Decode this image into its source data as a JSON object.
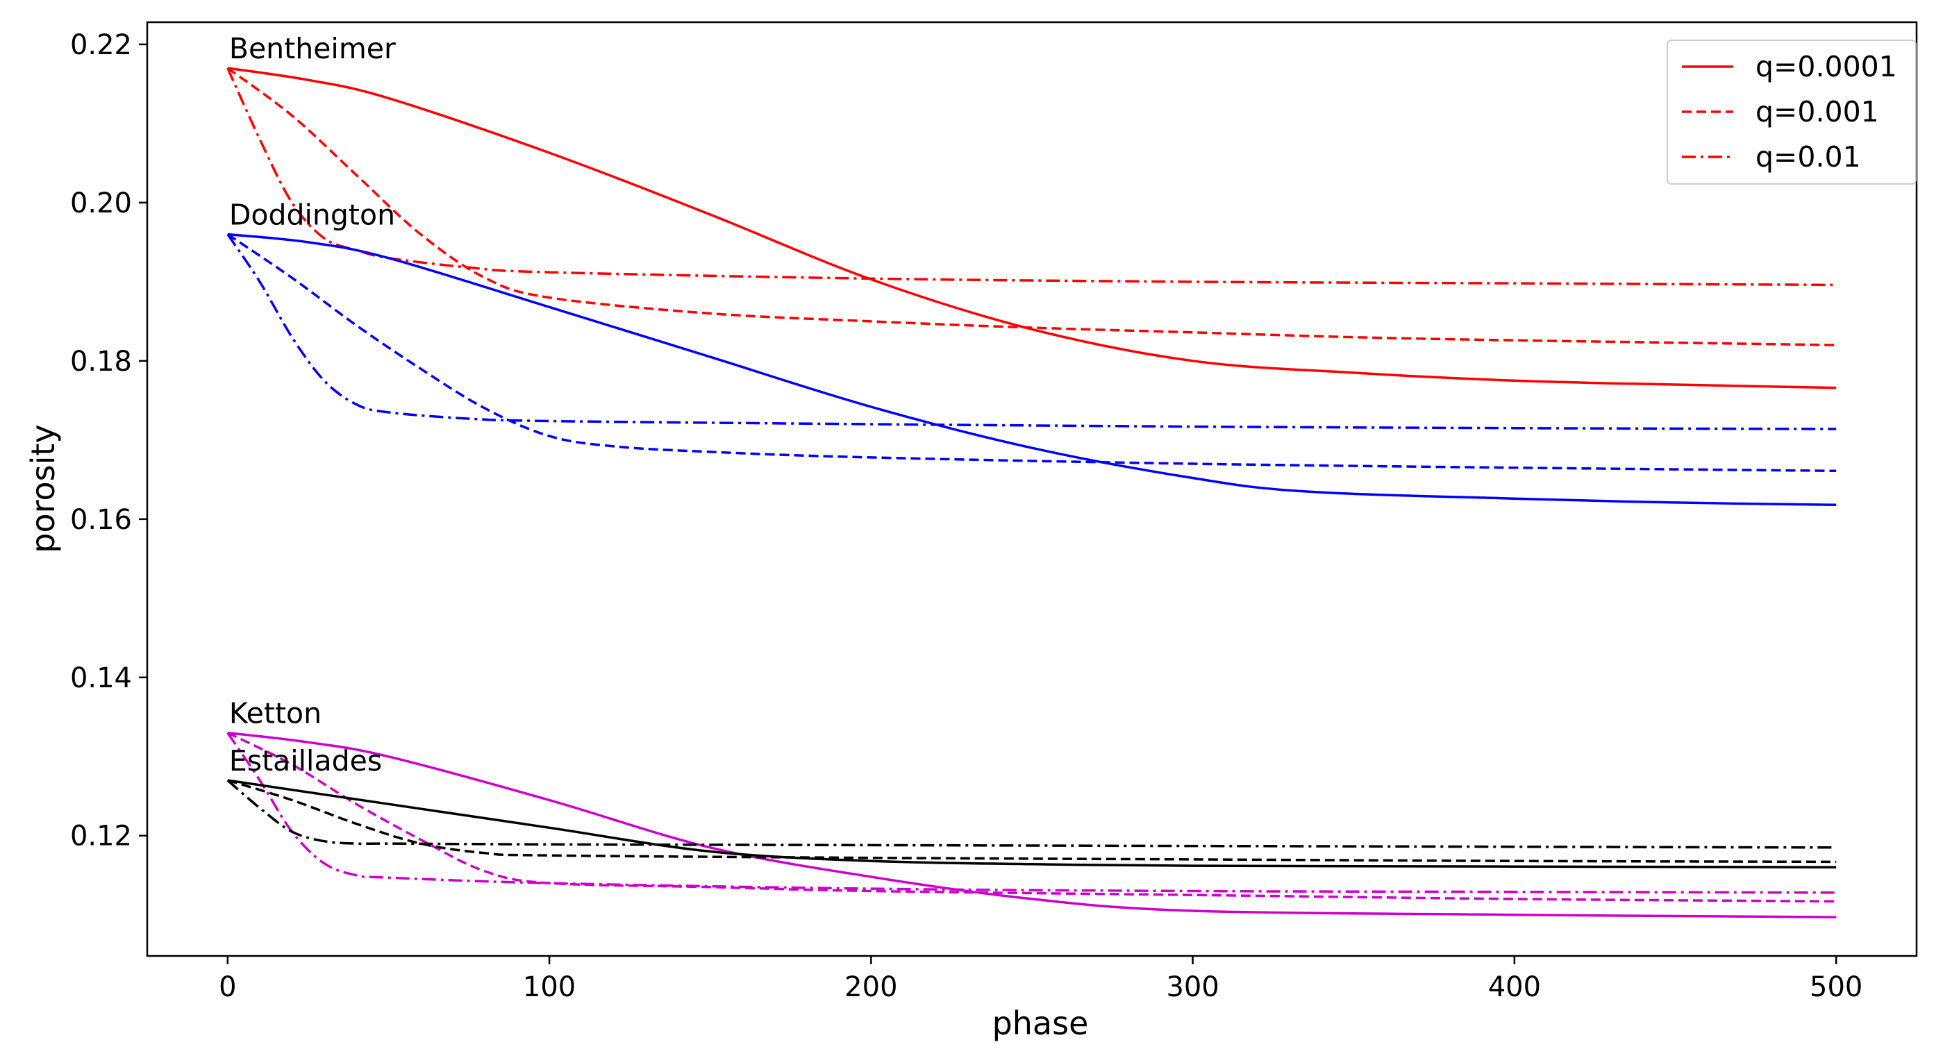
{
  "chart_data": {
    "type": "line",
    "title": "",
    "xlabel": "phase",
    "ylabel": "porosity",
    "xlim": [
      -25,
      525
    ],
    "ylim": [
      0.1048,
      0.2228
    ],
    "xticks": [
      0,
      100,
      200,
      300,
      400,
      500
    ],
    "xtick_labels": [
      "0",
      "100",
      "200",
      "300",
      "400",
      "500"
    ],
    "yticks": [
      0.12,
      0.14,
      0.16,
      0.18,
      0.2,
      0.22
    ],
    "ytick_labels": [
      "0.12",
      "0.14",
      "0.16",
      "0.18",
      "0.20",
      "0.22"
    ],
    "grid": false,
    "legend": {
      "placement": "top-right",
      "entries": [
        {
          "label": "q=0.0001",
          "style": "solid",
          "color": "#ff0000"
        },
        {
          "label": "q=0.001",
          "style": "dashed",
          "color": "#ff0000"
        },
        {
          "label": "q=0.01",
          "style": "dashdot",
          "color": "#ff0000"
        }
      ]
    },
    "annotations": [
      {
        "text": "Bentheimer",
        "x": 0,
        "y": 0.217
      },
      {
        "text": "Doddington",
        "x": 0,
        "y": 0.196
      },
      {
        "text": "Ketton",
        "x": 0,
        "y": 0.133
      },
      {
        "text": "Estaillades",
        "x": 0,
        "y": 0.127
      }
    ],
    "series": [
      {
        "rock": "Bentheimer",
        "q": "0.0001",
        "color": "#ff0000",
        "style": "solid",
        "x": [
          0,
          25,
          50,
          100,
          150,
          200,
          250,
          300,
          350,
          400,
          450,
          500
        ],
        "y": [
          0.217,
          0.2155,
          0.2132,
          0.2063,
          0.1985,
          0.1903,
          0.184,
          0.18,
          0.1785,
          0.1775,
          0.177,
          0.1766
        ]
      },
      {
        "rock": "Bentheimer",
        "q": "0.001",
        "color": "#ff0000",
        "style": "dashed",
        "x": [
          0,
          20,
          40,
          60,
          80,
          100,
          150,
          200,
          250,
          300,
          350,
          400,
          450,
          500
        ],
        "y": [
          0.217,
          0.211,
          0.2035,
          0.196,
          0.1905,
          0.188,
          0.186,
          0.185,
          0.1842,
          0.1836,
          0.183,
          0.1826,
          0.1823,
          0.182
        ]
      },
      {
        "rock": "Bentheimer",
        "q": "0.01",
        "color": "#ff0000",
        "style": "dashdot",
        "x": [
          0,
          10,
          20,
          30,
          40,
          50,
          75,
          100,
          200,
          300,
          400,
          500
        ],
        "y": [
          0.217,
          0.208,
          0.2,
          0.1955,
          0.194,
          0.193,
          0.1918,
          0.1912,
          0.1904,
          0.19,
          0.1898,
          0.1896
        ]
      },
      {
        "rock": "Doddington",
        "q": "0.0001",
        "color": "#0000ff",
        "style": "solid",
        "x": [
          0,
          25,
          50,
          100,
          150,
          200,
          250,
          300,
          335,
          400,
          450,
          500
        ],
        "y": [
          0.196,
          0.195,
          0.193,
          0.1868,
          0.1805,
          0.1742,
          0.169,
          0.1652,
          0.1635,
          0.1626,
          0.1621,
          0.1618
        ]
      },
      {
        "rock": "Doddington",
        "q": "0.001",
        "color": "#0000ff",
        "style": "dashed",
        "x": [
          0,
          20,
          40,
          60,
          80,
          100,
          120,
          150,
          200,
          300,
          400,
          500
        ],
        "y": [
          0.196,
          0.1905,
          0.1845,
          0.179,
          0.174,
          0.1705,
          0.1692,
          0.1685,
          0.1678,
          0.167,
          0.1665,
          0.1661
        ]
      },
      {
        "rock": "Doddington",
        "q": "0.01",
        "color": "#0000ff",
        "style": "dashdot",
        "x": [
          0,
          10,
          20,
          30,
          40,
          50,
          75,
          100,
          200,
          300,
          400,
          500
        ],
        "y": [
          0.196,
          0.19,
          0.183,
          0.1775,
          0.1745,
          0.1735,
          0.1727,
          0.1724,
          0.172,
          0.1717,
          0.1715,
          0.1714
        ]
      },
      {
        "rock": "Ketton",
        "q": "0.0001",
        "color": "#cc00cc",
        "style": "solid",
        "x": [
          0,
          25,
          50,
          100,
          150,
          200,
          250,
          300,
          400,
          500
        ],
        "y": [
          0.133,
          0.1318,
          0.13,
          0.1245,
          0.1185,
          0.1148,
          0.112,
          0.1105,
          0.11,
          0.1097
        ]
      },
      {
        "rock": "Ketton",
        "q": "0.001",
        "color": "#cc00cc",
        "style": "dashed",
        "x": [
          0,
          20,
          40,
          60,
          80,
          100,
          150,
          200,
          300,
          400,
          500
        ],
        "y": [
          0.133,
          0.129,
          0.124,
          0.1195,
          0.1155,
          0.114,
          0.1135,
          0.113,
          0.1125,
          0.112,
          0.1117
        ]
      },
      {
        "rock": "Ketton",
        "q": "0.01",
        "color": "#cc00cc",
        "style": "dashdot",
        "x": [
          0,
          10,
          20,
          30,
          40,
          50,
          100,
          200,
          300,
          400,
          500
        ],
        "y": [
          0.133,
          0.127,
          0.1205,
          0.1165,
          0.115,
          0.1147,
          0.114,
          0.1133,
          0.113,
          0.1129,
          0.1128
        ]
      },
      {
        "rock": "Estaillades",
        "q": "0.0001",
        "color": "#000000",
        "style": "solid",
        "x": [
          0,
          50,
          100,
          150,
          200,
          250,
          300,
          400,
          500
        ],
        "y": [
          0.127,
          0.124,
          0.121,
          0.118,
          0.1168,
          0.1164,
          0.1162,
          0.1161,
          0.116
        ]
      },
      {
        "rock": "Estaillades",
        "q": "0.001",
        "color": "#000000",
        "style": "dashed",
        "x": [
          0,
          20,
          40,
          60,
          80,
          100,
          200,
          300,
          400,
          500
        ],
        "y": [
          0.127,
          0.1245,
          0.1215,
          0.119,
          0.1178,
          0.1175,
          0.1172,
          0.117,
          0.1168,
          0.1167
        ]
      },
      {
        "rock": "Estaillades",
        "q": "0.01",
        "color": "#000000",
        "style": "dashdot",
        "x": [
          0,
          10,
          20,
          30,
          40,
          50,
          100,
          200,
          300,
          400,
          500
        ],
        "y": [
          0.127,
          0.1235,
          0.1205,
          0.1193,
          0.119,
          0.119,
          0.1189,
          0.1188,
          0.1187,
          0.1186,
          0.1185
        ]
      }
    ]
  }
}
